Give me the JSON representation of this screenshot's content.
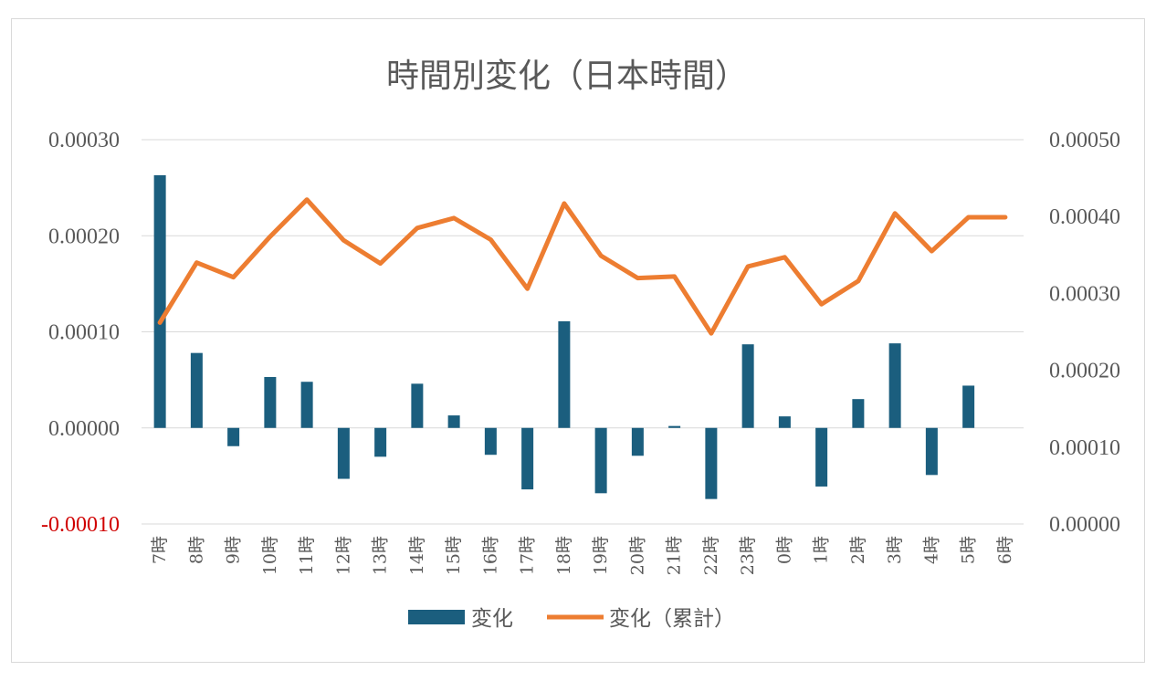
{
  "chart_data": {
    "type": "bar+line",
    "title": "時間別変化（日本時間）",
    "categories": [
      "7時",
      "8時",
      "9時",
      "10時",
      "11時",
      "12時",
      "13時",
      "14時",
      "15時",
      "16時",
      "17時",
      "18時",
      "19時",
      "20時",
      "21時",
      "22時",
      "23時",
      "0時",
      "1時",
      "2時",
      "3時",
      "4時",
      "5時",
      "6時"
    ],
    "series": [
      {
        "name": "変化",
        "type": "bar",
        "axis": "left",
        "color": "#1b5e7e",
        "values": [
          0.000263,
          7.8e-05,
          -1.9e-05,
          5.3e-05,
          4.8e-05,
          -5.3e-05,
          -3e-05,
          4.6e-05,
          1.3e-05,
          -2.8e-05,
          -6.4e-05,
          0.000111,
          -6.8e-05,
          -2.9e-05,
          2e-06,
          -7.4e-05,
          8.7e-05,
          1.2e-05,
          -6.1e-05,
          3e-05,
          8.8e-05,
          -4.9e-05,
          4.4e-05,
          0.0
        ]
      },
      {
        "name": "変化（累計）",
        "type": "line",
        "axis": "right",
        "color": "#ed7d31",
        "values": [
          0.000262,
          0.00034,
          0.000321,
          0.000374,
          0.000422,
          0.000369,
          0.000339,
          0.000385,
          0.000398,
          0.00037,
          0.000306,
          0.000417,
          0.000349,
          0.00032,
          0.000322,
          0.000248,
          0.000335,
          0.000347,
          0.000286,
          0.000316,
          0.000404,
          0.000355,
          0.000399,
          0.000399
        ]
      }
    ],
    "y_left": {
      "range": [
        -0.0001,
        0.0003
      ],
      "ticks": [
        "0.00030",
        "0.00020",
        "0.00010",
        "0.00000",
        "-0.00010"
      ],
      "negative_tick_color": "#d00000"
    },
    "y_right": {
      "range": [
        0.0,
        0.0005
      ],
      "ticks": [
        "0.00050",
        "0.00040",
        "0.00030",
        "0.00020",
        "0.00010",
        "0.00000"
      ]
    },
    "grid": true,
    "legend_position": "bottom",
    "colors": {
      "bar": "#1b5e7e",
      "line": "#ed7d31",
      "grid": "#d9d9d9",
      "text": "#595959",
      "negative_label": "#d00000"
    }
  }
}
